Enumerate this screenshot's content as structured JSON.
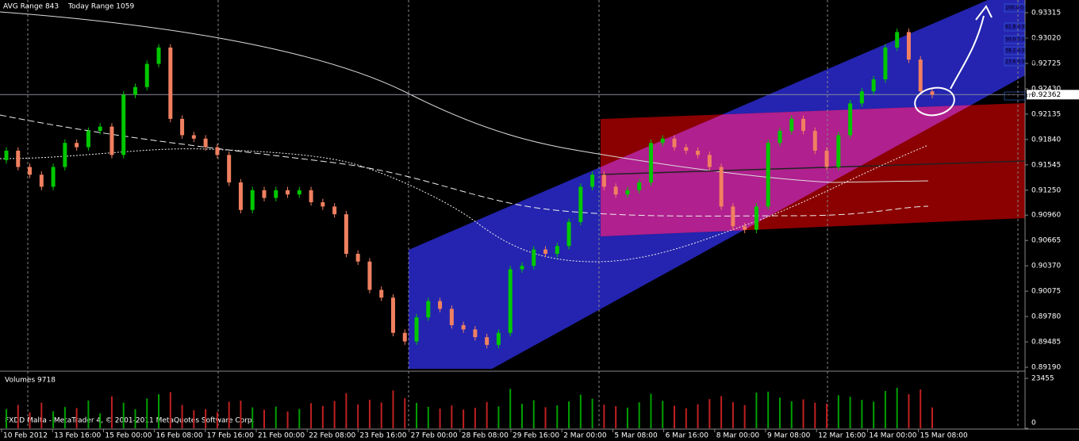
{
  "header": {
    "avg_range": "AVG Range 843",
    "today_range": "Today Range 1059"
  },
  "chart_data": {
    "type": "candlestick",
    "up_color": "#00c800",
    "down_color": "#f08060",
    "candles": [
      [
        0.916,
        0.9175,
        0.9156,
        0.9171
      ],
      [
        0.9171,
        0.9175,
        0.9148,
        0.9152
      ],
      [
        0.9152,
        0.9156,
        0.9139,
        0.9143
      ],
      [
        0.9143,
        0.9147,
        0.9125,
        0.9129
      ],
      [
        0.9129,
        0.9156,
        0.9125,
        0.9152
      ],
      [
        0.9152,
        0.9184,
        0.9148,
        0.918
      ],
      [
        0.918,
        0.9184,
        0.9171,
        0.9175
      ],
      [
        0.9175,
        0.9198,
        0.9171,
        0.9194
      ],
      [
        0.9194,
        0.9203,
        0.919,
        0.9199
      ],
      [
        0.9199,
        0.9203,
        0.9162,
        0.9166
      ],
      [
        0.9166,
        0.924,
        0.9162,
        0.9236
      ],
      [
        0.9236,
        0.9249,
        0.9232,
        0.9245
      ],
      [
        0.9245,
        0.9276,
        0.9241,
        0.9272
      ],
      [
        0.9272,
        0.9295,
        0.9268,
        0.9291
      ],
      [
        0.9291,
        0.9295,
        0.9204,
        0.9208
      ],
      [
        0.9208,
        0.9212,
        0.9185,
        0.9189
      ],
      [
        0.9189,
        0.9193,
        0.9181,
        0.9185
      ],
      [
        0.9185,
        0.9189,
        0.9171,
        0.9175
      ],
      [
        0.9175,
        0.9179,
        0.9162,
        0.9166
      ],
      [
        0.9166,
        0.917,
        0.913,
        0.9134
      ],
      [
        0.9134,
        0.9138,
        0.9098,
        0.9102
      ],
      [
        0.9102,
        0.9129,
        0.9098,
        0.9125
      ],
      [
        0.9125,
        0.9129,
        0.9112,
        0.9116
      ],
      [
        0.9116,
        0.9129,
        0.9112,
        0.9125
      ],
      [
        0.9125,
        0.9129,
        0.9116,
        0.912
      ],
      [
        0.912,
        0.9129,
        0.9116,
        0.9125
      ],
      [
        0.9125,
        0.9129,
        0.9107,
        0.9111
      ],
      [
        0.9111,
        0.9115,
        0.9102,
        0.9106
      ],
      [
        0.9106,
        0.911,
        0.9093,
        0.9097
      ],
      [
        0.9097,
        0.9101,
        0.9047,
        0.9051
      ],
      [
        0.9051,
        0.9055,
        0.9038,
        0.9042
      ],
      [
        0.9042,
        0.9046,
        0.9005,
        0.9009
      ],
      [
        0.9009,
        0.9013,
        0.8996,
        0.9
      ],
      [
        0.9,
        0.9004,
        0.8955,
        0.8959
      ],
      [
        0.8959,
        0.8963,
        0.8945,
        0.8949
      ],
      [
        0.8949,
        0.8981,
        0.8945,
        0.8977
      ],
      [
        0.8977,
        0.9,
        0.8973,
        0.8996
      ],
      [
        0.8996,
        0.9,
        0.8983,
        0.8987
      ],
      [
        0.8987,
        0.8991,
        0.8964,
        0.8968
      ],
      [
        0.8968,
        0.8972,
        0.8959,
        0.8963
      ],
      [
        0.8963,
        0.8967,
        0.895,
        0.8954
      ],
      [
        0.8954,
        0.8958,
        0.8941,
        0.8945
      ],
      [
        0.8945,
        0.8963,
        0.8941,
        0.8959
      ],
      [
        0.8959,
        0.9037,
        0.8955,
        0.9033
      ],
      [
        0.9033,
        0.9041,
        0.9029,
        0.9037
      ],
      [
        0.9037,
        0.906,
        0.9033,
        0.9056
      ],
      [
        0.9056,
        0.906,
        0.9047,
        0.9051
      ],
      [
        0.9051,
        0.9064,
        0.9047,
        0.906
      ],
      [
        0.906,
        0.9092,
        0.9056,
        0.9088
      ],
      [
        0.9088,
        0.9133,
        0.9084,
        0.9129
      ],
      [
        0.9129,
        0.9147,
        0.9125,
        0.9143
      ],
      [
        0.9143,
        0.9147,
        0.9125,
        0.9129
      ],
      [
        0.9129,
        0.9133,
        0.9116,
        0.912
      ],
      [
        0.912,
        0.9129,
        0.9116,
        0.9125
      ],
      [
        0.9125,
        0.9138,
        0.9121,
        0.9134
      ],
      [
        0.9134,
        0.9184,
        0.913,
        0.918
      ],
      [
        0.918,
        0.9189,
        0.9176,
        0.9185
      ],
      [
        0.9185,
        0.9189,
        0.9171,
        0.9175
      ],
      [
        0.9175,
        0.9179,
        0.9167,
        0.9171
      ],
      [
        0.9171,
        0.9175,
        0.9162,
        0.9166
      ],
      [
        0.9166,
        0.917,
        0.9148,
        0.9152
      ],
      [
        0.9152,
        0.9156,
        0.9102,
        0.9106
      ],
      [
        0.9106,
        0.911,
        0.9079,
        0.9083
      ],
      [
        0.9083,
        0.9087,
        0.9075,
        0.9079
      ],
      [
        0.9079,
        0.911,
        0.9075,
        0.9106
      ],
      [
        0.9106,
        0.9184,
        0.9102,
        0.918
      ],
      [
        0.918,
        0.9198,
        0.9176,
        0.9194
      ],
      [
        0.9194,
        0.9212,
        0.919,
        0.9208
      ],
      [
        0.9208,
        0.9212,
        0.919,
        0.9194
      ],
      [
        0.9194,
        0.9198,
        0.9167,
        0.9171
      ],
      [
        0.9171,
        0.9175,
        0.9148,
        0.9152
      ],
      [
        0.9152,
        0.9193,
        0.9148,
        0.9189
      ],
      [
        0.9189,
        0.923,
        0.9185,
        0.9226
      ],
      [
        0.9226,
        0.9244,
        0.9222,
        0.924
      ],
      [
        0.924,
        0.9258,
        0.9236,
        0.9254
      ],
      [
        0.9254,
        0.9295,
        0.925,
        0.9291
      ],
      [
        0.9291,
        0.9313,
        0.9287,
        0.9309
      ],
      [
        0.9309,
        0.9313,
        0.9273,
        0.9277
      ],
      [
        0.9277,
        0.9281,
        0.9236,
        0.924
      ],
      [
        0.924,
        0.9244,
        0.9232,
        0.9236
      ]
    ],
    "ylim": [
      0.89144,
      0.93463
    ],
    "yticks": [
      0.93315,
      {
        "value": 0.9302,
        "label": "0.93020"
      },
      0.92725,
      {
        "value": 0.9243,
        "label": "0.92430"
      },
      0.92135,
      {
        "value": 0.9184,
        "label": "0.91840"
      },
      0.91545,
      {
        "value": 0.9125,
        "label": "0.91250"
      },
      {
        "value": 0.9096,
        "label": "0.90960"
      },
      0.90665,
      {
        "value": 0.9037,
        "label": "0.90370"
      },
      0.90075,
      {
        "value": 0.8978,
        "label": "0.89780"
      },
      0.89485,
      {
        "value": 0.8919,
        "label": "0.89190"
      }
    ],
    "price_line": 0.92362,
    "fib_labels": [
      "100.0 0.93344",
      "61.8 0.93085",
      "50.0 0.93005",
      "38.2 0.92926",
      "23.6 0.92826",
      "0.0 0.92377"
    ],
    "volume": {
      "title": "Volumes 9718",
      "ylim": [
        0,
        23455
      ],
      "yticks": [
        23455,
        0
      ],
      "values": [
        9000,
        11000,
        7500,
        12000,
        8000,
        10000,
        9500,
        13000,
        7000,
        15000,
        12000,
        9000,
        14000,
        16000,
        17000,
        11000,
        8500,
        9000,
        7600,
        12500,
        13000,
        9800,
        8700,
        10200,
        7900,
        9100,
        11800,
        10500,
        12800,
        16500,
        11200,
        13400,
        12100,
        17800,
        14200,
        11900,
        10100,
        9300,
        10700,
        8800,
        9600,
        12400,
        10300,
        18500,
        11500,
        13200,
        9900,
        10800,
        12600,
        15800,
        13900,
        11100,
        10400,
        9700,
        12200,
        16200,
        12900,
        10600,
        9400,
        11300,
        13700,
        15100,
        12300,
        10900,
        16800,
        17200,
        14400,
        12700,
        13600,
        12000,
        11600,
        15500,
        14800,
        13300,
        12500,
        17500,
        19000,
        16000,
        18200,
        9800
      ]
    },
    "time_labels": [
      "10 Feb 2012",
      "13 Feb 16:00",
      "15 Feb 00:00",
      "16 Feb 08:00",
      "17 Feb 16:00",
      "21 Feb 00:00",
      "22 Feb 08:00",
      "23 Feb 16:00",
      "27 Feb 00:00",
      "28 Feb 08:00",
      "29 Feb 16:00",
      "2 Mar 00:00",
      "5 Mar 08:00",
      "6 Mar 16:00",
      "8 Mar 00:00",
      "9 Mar 08:00",
      "12 Mar 16:00",
      "14 Mar 00:00",
      "15 Mar 08:00"
    ]
  },
  "footer": "FXDD Malta - MetaTrader 4, © 2001-2011 MetaQuotes Software Corp."
}
